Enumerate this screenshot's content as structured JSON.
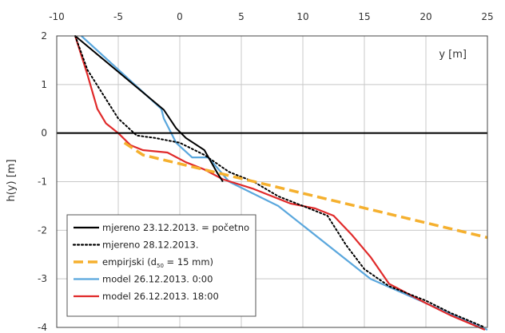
{
  "chart_data": {
    "type": "line",
    "xlabel": "y [m]",
    "ylabel": "h(y) [m]",
    "xlim": [
      -10,
      25
    ],
    "ylim": [
      -4,
      2
    ],
    "x_ticks": [
      "-10",
      "-5",
      "0",
      "5",
      "10",
      "15",
      "20",
      "25"
    ],
    "y_ticks": [
      "2",
      "1",
      "0",
      "-1",
      "-2",
      "-3",
      "-4"
    ],
    "x_axis_position": "top",
    "grid": true,
    "legend_position": "bottom-left",
    "series": [
      {
        "name": "mjereno 23.12.2013. = početno",
        "color": "#000000",
        "style": "solid",
        "points": [
          [
            -8.5,
            2.0
          ],
          [
            -1.3,
            0.48
          ],
          [
            -0.3,
            0.1
          ],
          [
            0.5,
            -0.1
          ],
          [
            2.0,
            -0.35
          ],
          [
            3.0,
            -0.8
          ],
          [
            3.5,
            -1.0
          ]
        ]
      },
      {
        "name": "mjereno 28.12.2013.",
        "color": "#000000",
        "style": "dotted",
        "points": [
          [
            -8.5,
            2.0
          ],
          [
            -7.5,
            1.3
          ],
          [
            -6.5,
            0.9
          ],
          [
            -5.0,
            0.3
          ],
          [
            -3.5,
            -0.05
          ],
          [
            -2.0,
            -0.1
          ],
          [
            0.0,
            -0.2
          ],
          [
            2.0,
            -0.45
          ],
          [
            4.0,
            -0.8
          ],
          [
            6.0,
            -1.0
          ],
          [
            8.0,
            -1.3
          ],
          [
            10.0,
            -1.5
          ],
          [
            12.0,
            -1.7
          ],
          [
            13.5,
            -2.3
          ],
          [
            15.0,
            -2.8
          ],
          [
            17.0,
            -3.15
          ],
          [
            20.0,
            -3.45
          ],
          [
            22.0,
            -3.7
          ],
          [
            24.8,
            -4.0
          ]
        ]
      },
      {
        "name": "empirjski",
        "name_subscript": "50",
        "name_prefix": "empirjski (d",
        "name_suffix": " = 15 mm)",
        "color": "#f5b02e",
        "style": "dashed",
        "points": [
          [
            -4.5,
            -0.2
          ],
          [
            -3.0,
            -0.45
          ],
          [
            25.0,
            -2.15
          ]
        ]
      },
      {
        "name": "model 26.12.2013.   0:00",
        "color": "#5aa7dd",
        "style": "solid",
        "points": [
          [
            -8.0,
            2.0
          ],
          [
            -1.5,
            0.5
          ],
          [
            -1.3,
            0.3
          ],
          [
            -0.3,
            -0.2
          ],
          [
            1.0,
            -0.5
          ],
          [
            2.3,
            -0.5
          ],
          [
            3.0,
            -0.7
          ],
          [
            4.0,
            -1.0
          ],
          [
            8.0,
            -1.5
          ],
          [
            15.5,
            -3.0
          ],
          [
            20.0,
            -3.5
          ],
          [
            25.0,
            -4.05
          ]
        ]
      },
      {
        "name": "model 26.12.2013. 18:00",
        "color": "#e02a2a",
        "style": "solid",
        "points": [
          [
            -8.5,
            2.0
          ],
          [
            -7.5,
            1.2
          ],
          [
            -6.7,
            0.5
          ],
          [
            -6.0,
            0.2
          ],
          [
            -5.0,
            0.0
          ],
          [
            -4.0,
            -0.25
          ],
          [
            -3.0,
            -0.35
          ],
          [
            -1.0,
            -0.4
          ],
          [
            0.5,
            -0.6
          ],
          [
            2.0,
            -0.75
          ],
          [
            3.5,
            -0.95
          ],
          [
            6.0,
            -1.15
          ],
          [
            9.0,
            -1.45
          ],
          [
            11.0,
            -1.55
          ],
          [
            12.5,
            -1.7
          ],
          [
            14.0,
            -2.1
          ],
          [
            15.5,
            -2.55
          ],
          [
            17.0,
            -3.1
          ],
          [
            20.0,
            -3.5
          ],
          [
            22.0,
            -3.75
          ],
          [
            24.8,
            -4.05
          ]
        ]
      }
    ]
  }
}
